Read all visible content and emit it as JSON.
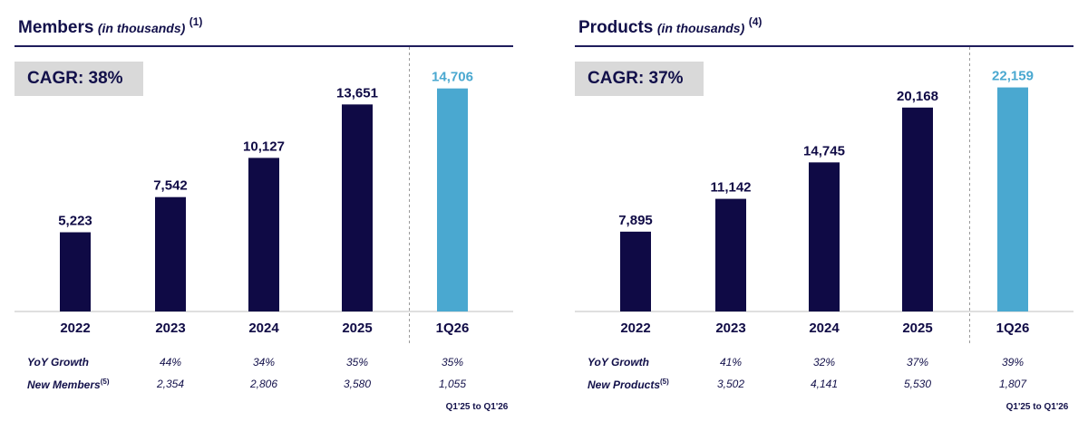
{
  "charts": [
    {
      "title": "Members",
      "title_unit": "(in thousands)",
      "title_footnote": "(1)",
      "cagr": "CAGR: 38%",
      "growth_label": "YoY Growth",
      "new_label": "New Members",
      "new_footnote": "(5)",
      "period_note": "Q1'25 to Q1'26",
      "rows": {
        "growth": [
          "44%",
          "34%",
          "35%",
          "35%"
        ],
        "new": [
          "2,354",
          "2,806",
          "3,580",
          "1,055"
        ]
      }
    },
    {
      "title": "Products",
      "title_unit": "(in thousands)",
      "title_footnote": "(4)",
      "cagr": "CAGR: 37%",
      "growth_label": "YoY Growth",
      "new_label": "New Products",
      "new_footnote": "(5)",
      "period_note": "Q1'25 to Q1'26",
      "rows": {
        "growth": [
          "41%",
          "32%",
          "37%",
          "39%"
        ],
        "new": [
          "3,502",
          "4,141",
          "5,530",
          "1,807"
        ]
      }
    }
  ],
  "colors": {
    "primary": "#0f0a45",
    "highlight": "#4aa8d0",
    "cagr_bg": "#d9d9d9",
    "dashed": "#9a9a9a"
  },
  "chart_data": [
    {
      "type": "bar",
      "title": "Members (in thousands)",
      "categories": [
        "2022",
        "2023",
        "2024",
        "2025",
        "1Q26"
      ],
      "values": [
        5223,
        7542,
        10127,
        13651,
        14706
      ],
      "labels": [
        "5,223",
        "7,542",
        "10,127",
        "13,651",
        "14,706"
      ],
      "highlight_index": 4,
      "ylim": [
        0,
        16000
      ],
      "xlabel": "",
      "ylabel": ""
    },
    {
      "type": "bar",
      "title": "Products (in thousands)",
      "categories": [
        "2022",
        "2023",
        "2024",
        "2025",
        "1Q26"
      ],
      "values": [
        7895,
        11142,
        14745,
        20168,
        22159
      ],
      "labels": [
        "7,895",
        "11,142",
        "14,745",
        "20,168",
        "22,159"
      ],
      "highlight_index": 4,
      "ylim": [
        0,
        24000
      ],
      "xlabel": "",
      "ylabel": ""
    }
  ]
}
